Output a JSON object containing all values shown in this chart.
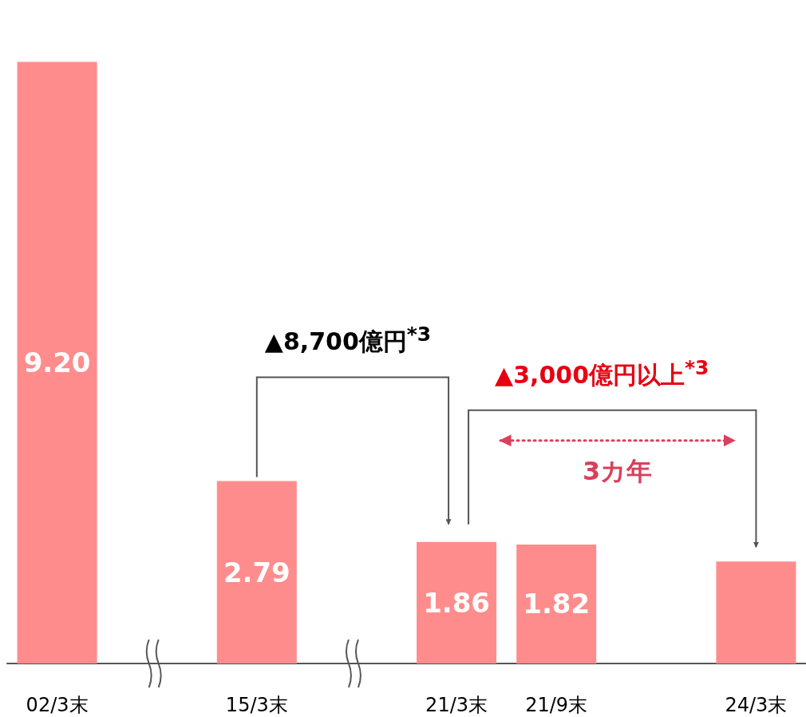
{
  "chart_data": {
    "type": "bar",
    "categories": [
      "02/3末",
      null,
      "15/3末",
      null,
      "21/3末",
      "21/9末",
      null,
      "24/3末"
    ],
    "values": [
      9.2,
      null,
      2.79,
      null,
      1.86,
      1.82,
      null,
      1.56
    ],
    "color": "#ff8c8c",
    "value_labels": [
      "9.20",
      null,
      "2.79",
      null,
      "1.86",
      "1.82",
      null,
      null
    ],
    "annotations": [
      "▲8,700億円$^{*3}$",
      "▲3,000億円以上$^{*3}$",
      "3カ年"
    ]
  }
}
